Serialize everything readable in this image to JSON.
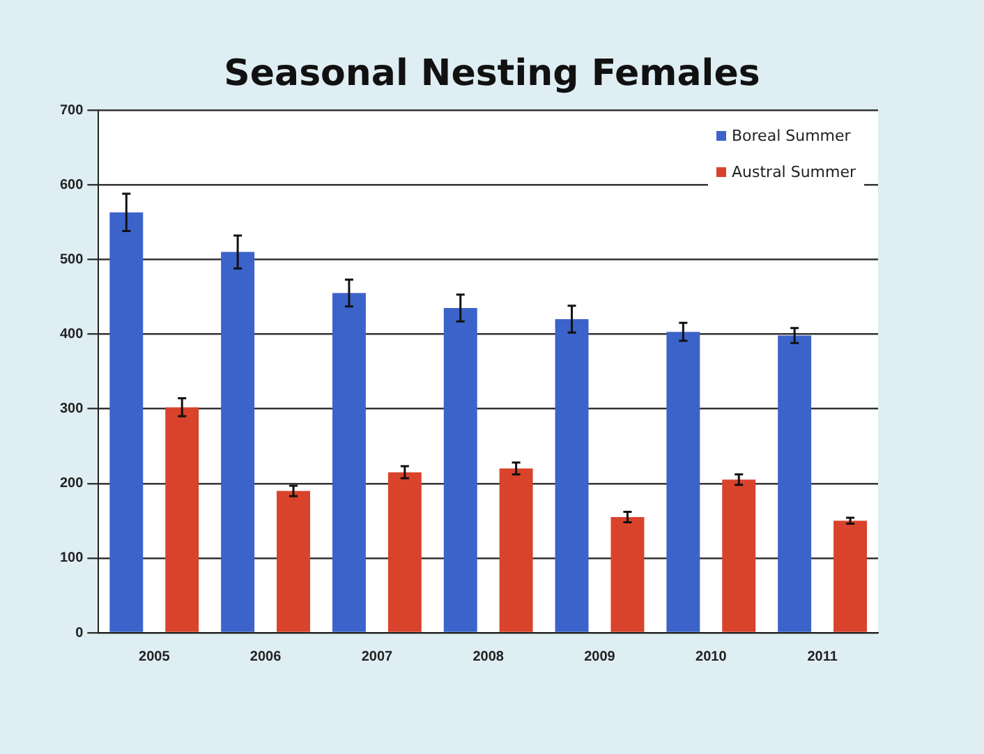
{
  "chart_data": {
    "type": "bar",
    "title": "Seasonal Nesting Females",
    "categories": [
      "2005",
      "2006",
      "2007",
      "2008",
      "2009",
      "2010",
      "2011"
    ],
    "series": [
      {
        "name": "Boreal Summer",
        "color": "#3b63c9",
        "values": [
          563,
          510,
          455,
          435,
          420,
          403,
          398
        ],
        "errors": [
          25,
          22,
          18,
          18,
          18,
          12,
          10
        ]
      },
      {
        "name": "Austral Summer",
        "color": "#d9432b",
        "values": [
          302,
          190,
          215,
          220,
          155,
          205,
          150
        ],
        "errors": [
          12,
          7,
          8,
          8,
          7,
          7,
          4
        ]
      }
    ],
    "ylim": [
      0,
      700
    ],
    "yticks": [
      0,
      100,
      200,
      300,
      400,
      500,
      600,
      700
    ],
    "grid": "y",
    "legend": "top right"
  }
}
